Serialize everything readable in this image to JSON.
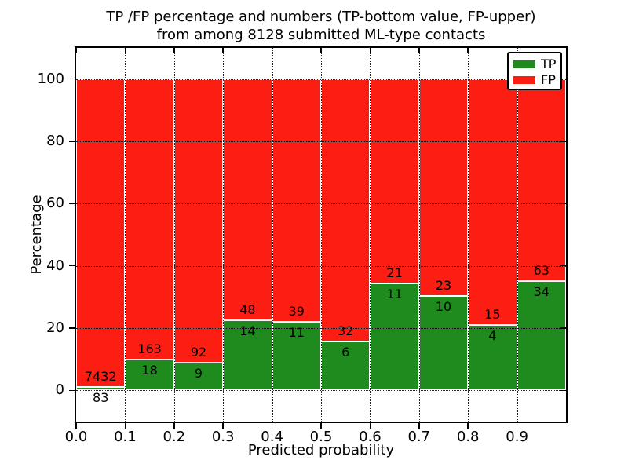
{
  "figure": {
    "title_line1": "TP /FP percentage and numbers (TP-bottom value, FP-upper)",
    "title_line2": "from among 8128 submitted ML-type contacts"
  },
  "chart_data": {
    "type": "bar",
    "variant": "stacked-percentage-histogram",
    "title": "TP /FP percentage and numbers (TP-bottom value, FP-upper) from among 8128 submitted ML-type contacts",
    "xlabel": "Predicted probability",
    "ylabel": "Percentage",
    "xlim": [
      0,
      1.0
    ],
    "ylim": [
      -10,
      110
    ],
    "bin_width": 0.1,
    "bin_starts": [
      0.0,
      0.1,
      0.2,
      0.3,
      0.4,
      0.5,
      0.6,
      0.7,
      0.8,
      0.9
    ],
    "xtick_labels": [
      "0.0",
      "0.1",
      "0.2",
      "0.3",
      "0.4",
      "0.5",
      "0.6",
      "0.7",
      "0.8",
      "0.9"
    ],
    "ytick_values": [
      0,
      20,
      40,
      60,
      80,
      100
    ],
    "grid": true,
    "grid_style": "dotted-black-above-bars",
    "bar_edge_color": "#ffffff",
    "legend_position": "upper right",
    "series": [
      {
        "name": "TP",
        "color": "#1f8b1f",
        "counts": [
          83,
          18,
          9,
          14,
          11,
          6,
          11,
          10,
          4,
          34
        ]
      },
      {
        "name": "FP",
        "color": "#fc1d13",
        "counts": [
          7432,
          163,
          92,
          48,
          39,
          32,
          21,
          23,
          15,
          63
        ]
      }
    ],
    "tp_percent_of_bin": [
      1.1,
      9.9,
      8.9,
      22.6,
      22.0,
      15.8,
      34.4,
      30.3,
      21.1,
      35.1
    ],
    "total_contacts": 8128
  }
}
